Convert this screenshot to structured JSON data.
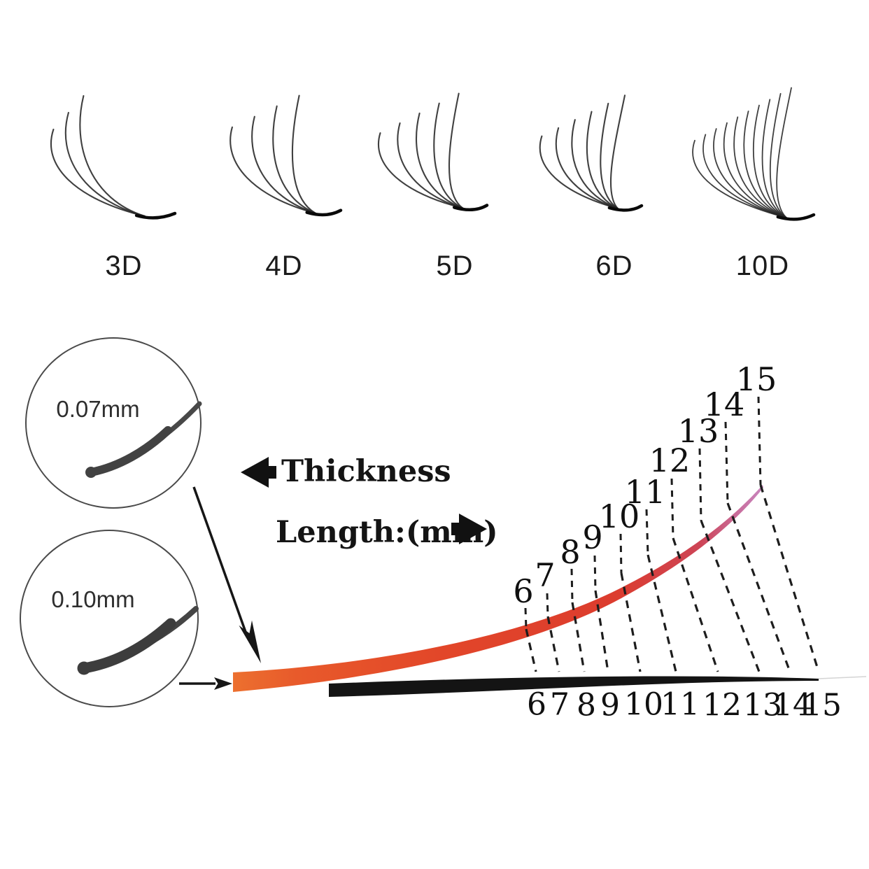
{
  "diagram": {
    "fans": [
      {
        "label": "3D",
        "strand_count": 3
      },
      {
        "label": "4D",
        "strand_count": 4
      },
      {
        "label": "5D",
        "strand_count": 5
      },
      {
        "label": "6D",
        "strand_count": 6
      },
      {
        "label": "10D",
        "strand_count": 10
      }
    ],
    "thickness": {
      "label": "Thickness",
      "circles": [
        {
          "value": "0.07mm"
        },
        {
          "value": "0.10mm"
        }
      ]
    },
    "length": {
      "label": "Length:(mm)",
      "top_ticks": [
        "6",
        "7",
        "8",
        "9",
        "10",
        "11",
        "12",
        "13",
        "14",
        "15"
      ],
      "bottom_ticks": [
        "6",
        "7",
        "8",
        "9",
        "10",
        "11",
        "12",
        "13",
        "14",
        "15"
      ]
    },
    "colors": {
      "lash_red": "#e24629",
      "lash_orange_base": "#ec702f",
      "lash_pink_tip": "#c887bf",
      "lash_black": "#141414",
      "ink": "#1d1d1d"
    }
  }
}
